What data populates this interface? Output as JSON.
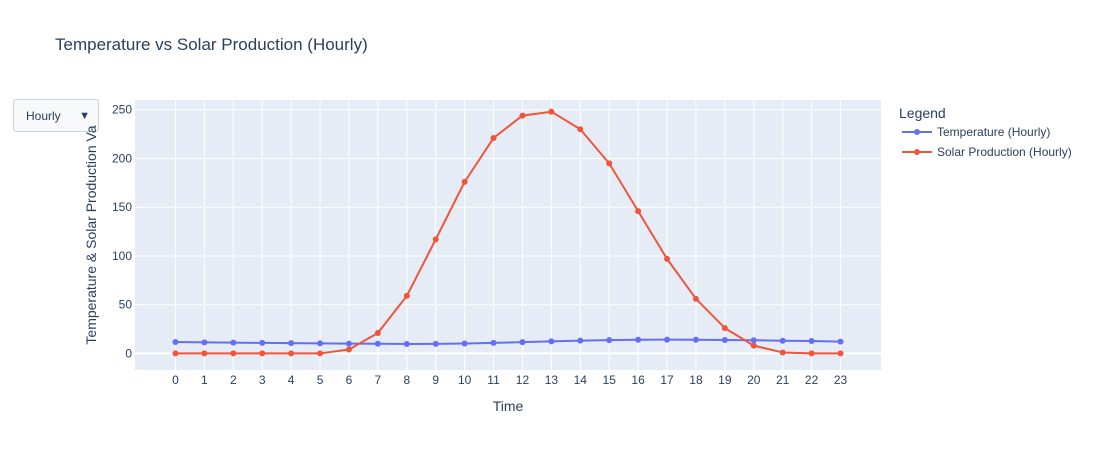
{
  "dropdown": {
    "selected": "Hourly",
    "arrow": "▼"
  },
  "chart_data": {
    "type": "line",
    "title": "Temperature vs Solar Production (Hourly)",
    "xlabel": "Time",
    "ylabel": "Temperature & Solar Production Va",
    "x": [
      0,
      1,
      2,
      3,
      4,
      5,
      6,
      7,
      8,
      9,
      10,
      11,
      12,
      13,
      14,
      15,
      16,
      17,
      18,
      19,
      20,
      21,
      22,
      23
    ],
    "xlim": [
      -1.4,
      24.4
    ],
    "ylim": [
      -17,
      260
    ],
    "yticks": [
      0,
      50,
      100,
      150,
      200,
      250
    ],
    "grid": true,
    "legend_title": "Legend",
    "legend_position": "right",
    "series": [
      {
        "name": "Temperature (Hourly)",
        "color": "#636efa",
        "values": [
          11.7,
          11.4,
          11.1,
          10.8,
          10.6,
          10.3,
          10.0,
          9.9,
          9.7,
          9.8,
          10.2,
          10.8,
          11.6,
          12.4,
          13.1,
          13.6,
          14.0,
          14.2,
          14.0,
          13.8,
          13.5,
          13.0,
          12.7,
          12.1
        ]
      },
      {
        "name": "Solar Production (Hourly)",
        "color": "#ef553b",
        "values": [
          0,
          0,
          0,
          0,
          0,
          0,
          4,
          21,
          59,
          117,
          176,
          221,
          244,
          248,
          230,
          195,
          146,
          97,
          56,
          26,
          8,
          1,
          0,
          0
        ]
      }
    ]
  }
}
